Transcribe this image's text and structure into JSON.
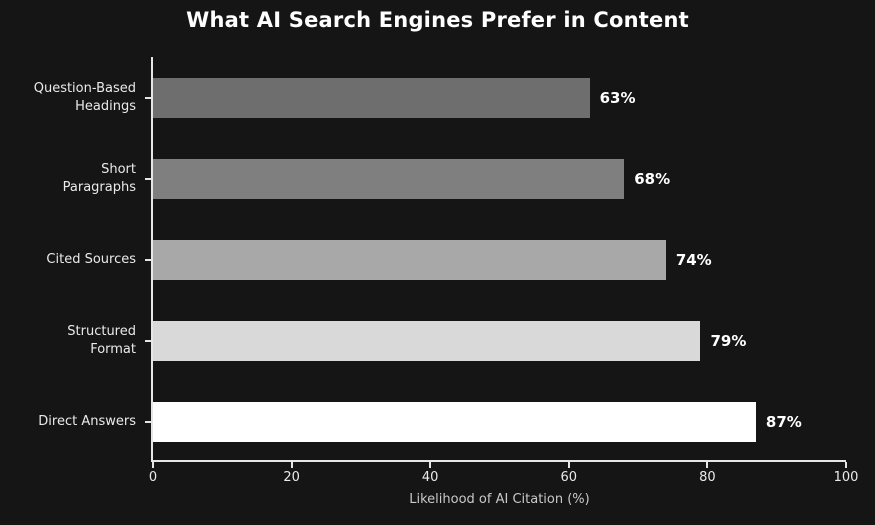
{
  "chart_data": {
    "type": "bar",
    "orientation": "horizontal",
    "title": "What AI Search Engines Prefer in Content",
    "categories": [
      "Question-Based Headings",
      "Short Paragraphs",
      "Cited Sources",
      "Structured Format",
      "Direct Answers"
    ],
    "values": [
      63,
      68,
      74,
      79,
      87
    ],
    "value_labels": [
      "63%",
      "68%",
      "74%",
      "79%",
      "87%"
    ],
    "bar_colors": [
      "#6e6e6e",
      "#7f7f7f",
      "#a8a8a8",
      "#d9d9d9",
      "#ffffff"
    ],
    "xlabel": "Likelihood of AI Citation (%)",
    "ylabel": "",
    "xlim": [
      0,
      100
    ],
    "x_ticks": [
      0,
      20,
      40,
      60,
      80,
      100
    ],
    "grid": false,
    "legend": false,
    "background_color": "#151515",
    "text_color": "#ffffff",
    "axis_color": "#e6e6e6"
  }
}
